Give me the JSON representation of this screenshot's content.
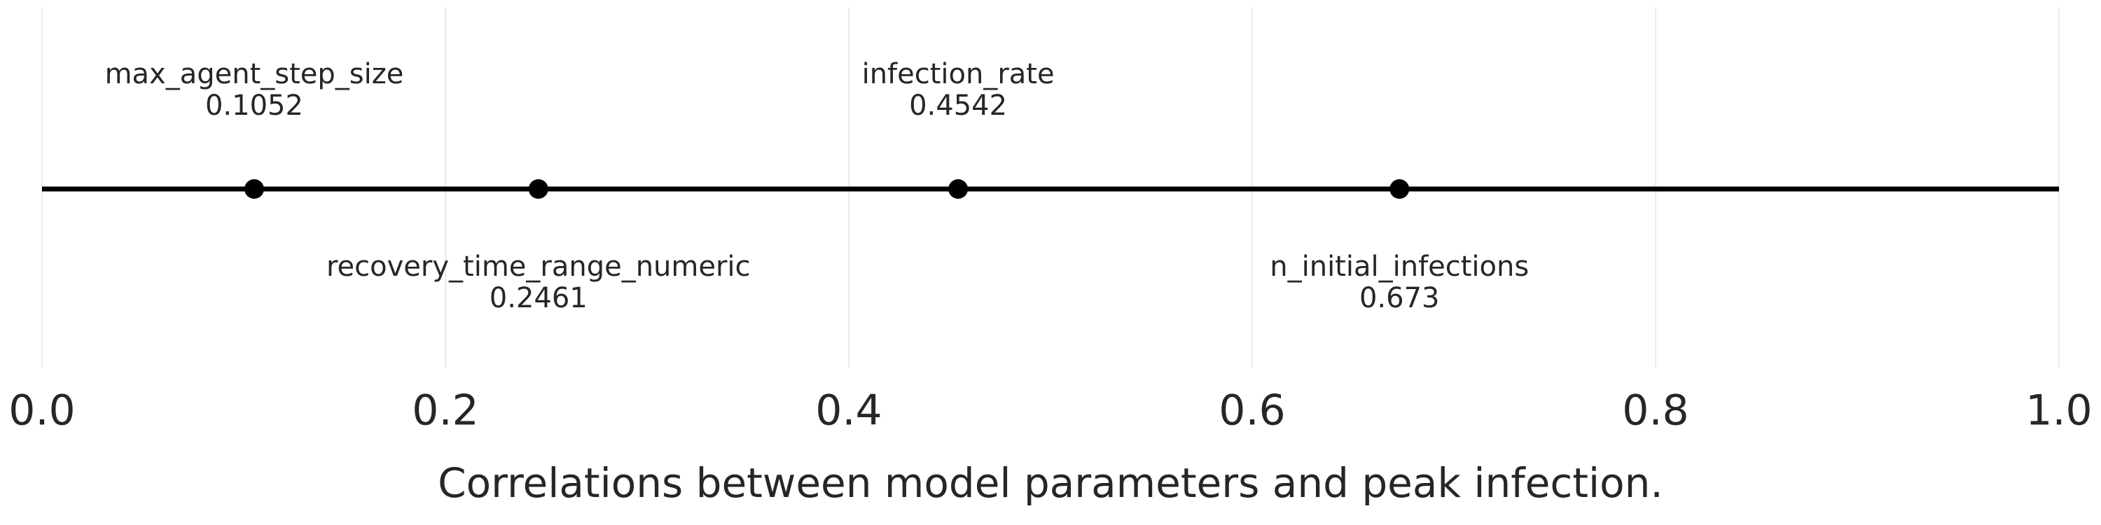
{
  "chart_data": {
    "type": "scatter",
    "title": "",
    "xlabel": "Correlations between model parameters and peak infection.",
    "ylabel": "",
    "xlim": [
      0.0,
      1.0
    ],
    "xticks": [
      "0.0",
      "0.2",
      "0.4",
      "0.6",
      "0.8",
      "1.0"
    ],
    "tick_values": [
      0.0,
      0.2,
      0.4,
      0.6,
      0.8,
      1.0
    ],
    "grid": true,
    "points": [
      {
        "name": "max_agent_step_size",
        "value": 0.1052,
        "value_label": "0.1052",
        "label_position": "above"
      },
      {
        "name": "recovery_time_range_numeric",
        "value": 0.2461,
        "value_label": "0.2461",
        "label_position": "below"
      },
      {
        "name": "infection_rate",
        "value": 0.4542,
        "value_label": "0.4542",
        "label_position": "above"
      },
      {
        "name": "n_initial_infections",
        "value": 0.673,
        "value_label": "0.673",
        "label_position": "below"
      }
    ],
    "colors": {
      "line": "#000000",
      "point": "#000000",
      "text": "#262626",
      "grid": "#ebebeb"
    }
  }
}
